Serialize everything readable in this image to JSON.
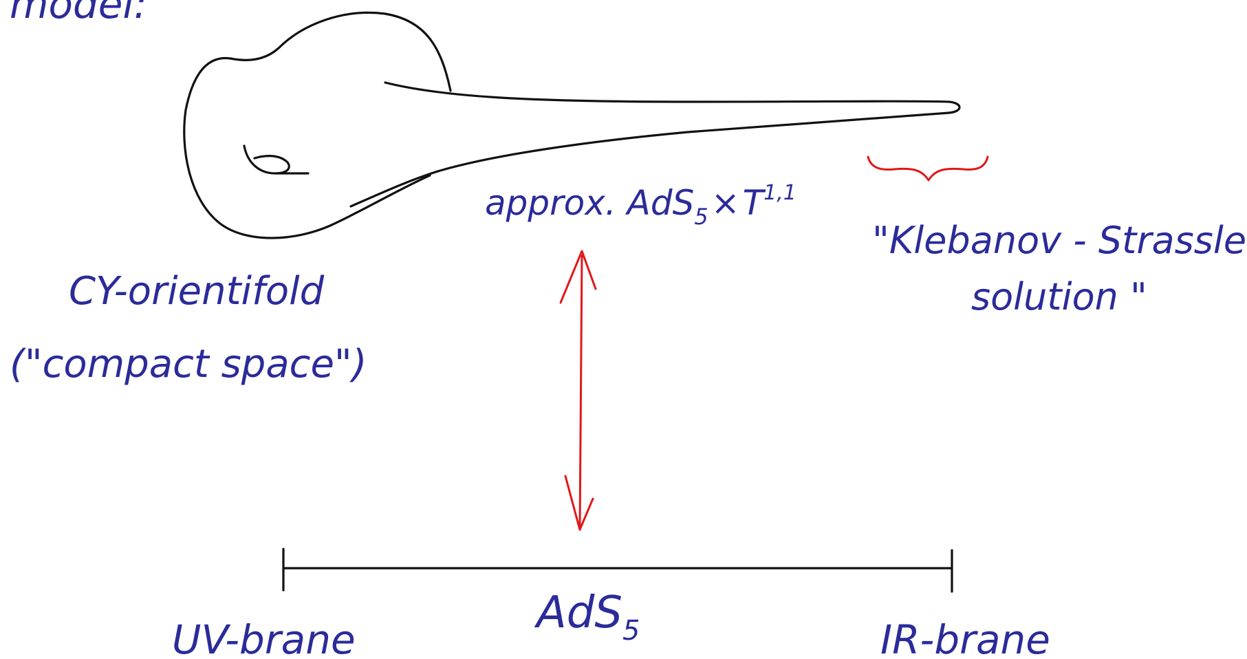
{
  "header_label": "model:",
  "labels": {
    "approx": "approx. AdS",
    "approx_sub": "5",
    "approx_cross": "×",
    "approx_T": "T",
    "approx_sup": "1,1",
    "klebanov_line1": "\"Klebanov - Strassler",
    "klebanov_line2": "solution \"",
    "cy_line1": "CY-orientifold",
    "cy_line2": "(\"compact space\")",
    "ads5": "AdS",
    "ads5_sub": "5",
    "uv_brane": "UV-brane",
    "ir_brane": "IR-brane"
  },
  "colors": {
    "handwriting": "#2b2b9a",
    "drawing": "#111111",
    "accent": "#e01818",
    "background": "#ffffff"
  }
}
